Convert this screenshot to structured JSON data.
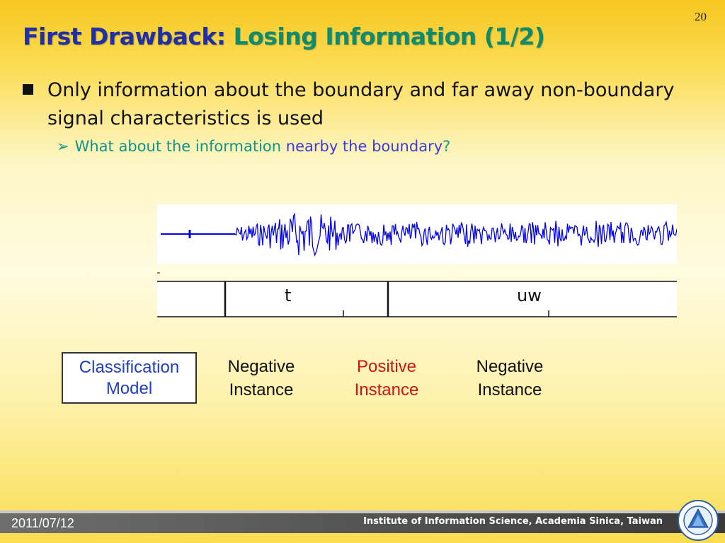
{
  "slide_number": "20",
  "title": {
    "part1": "First Drawback:",
    "part2": "Losing Information (1/2)"
  },
  "bullet": "Only information about the boundary and far away non-boundary signal characteristics is used",
  "sub_bullet": {
    "part1": "What about the information",
    "part2": "nearby the boundary",
    "part3": "?"
  },
  "figure": {
    "segment_labels": [
      "t",
      "uw"
    ]
  },
  "model_box": {
    "line1": "Classification",
    "line2": "Model"
  },
  "instances": [
    {
      "line1": "Negative",
      "line2": "Instance",
      "color": "#111111"
    },
    {
      "line1": "Positive",
      "line2": "Instance",
      "color": "#cc1616"
    },
    {
      "line1": "Negative",
      "line2": "Instance",
      "color": "#111111"
    }
  ],
  "footer": {
    "date": "2011/07/12",
    "institute": "Institute of Information Science, Academia Sinica, Taiwan"
  },
  "colors": {
    "title_primary": "#1f2fa8",
    "title_secondary": "#0e8a6e",
    "waveform": "#0000ee",
    "accent_red": "#cc1616"
  }
}
